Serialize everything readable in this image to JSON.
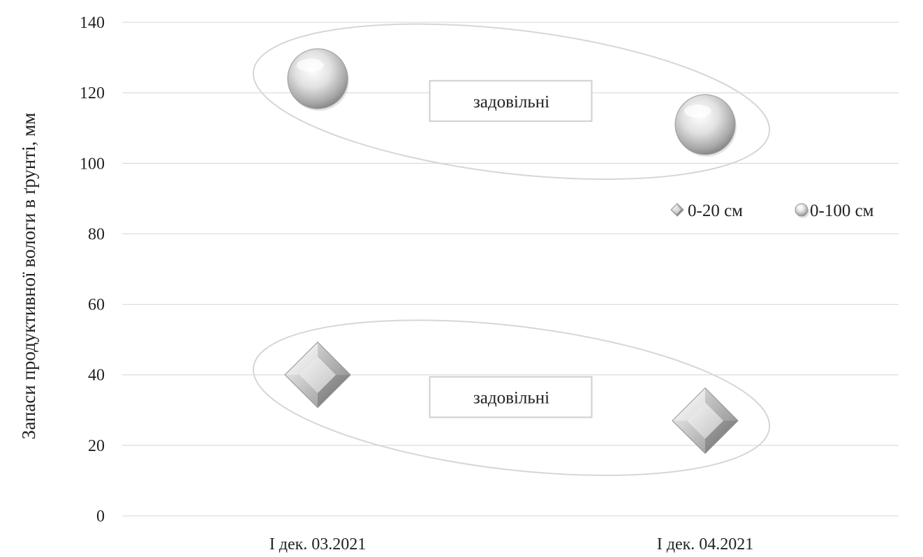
{
  "chart_data": {
    "type": "scatter",
    "title": "",
    "xlabel": "",
    "ylabel": "Запаси продуктивної вологи в ґрунті, мм",
    "categories": [
      "І дек. 03.2021",
      "І дек. 04.2021"
    ],
    "ylim": [
      0,
      140
    ],
    "yticks": [
      0,
      20,
      40,
      60,
      80,
      100,
      120,
      140
    ],
    "grid": true,
    "legend_position": "right",
    "series": [
      {
        "name": "0-20 см",
        "marker": "diamond",
        "values": [
          40,
          27
        ]
      },
      {
        "name": "0-100 см",
        "marker": "sphere",
        "values": [
          124,
          111
        ]
      }
    ],
    "annotations": [
      {
        "text": "задовільні",
        "series": "0-100 см"
      },
      {
        "text": "задовільні",
        "series": "0-20 см"
      }
    ]
  }
}
